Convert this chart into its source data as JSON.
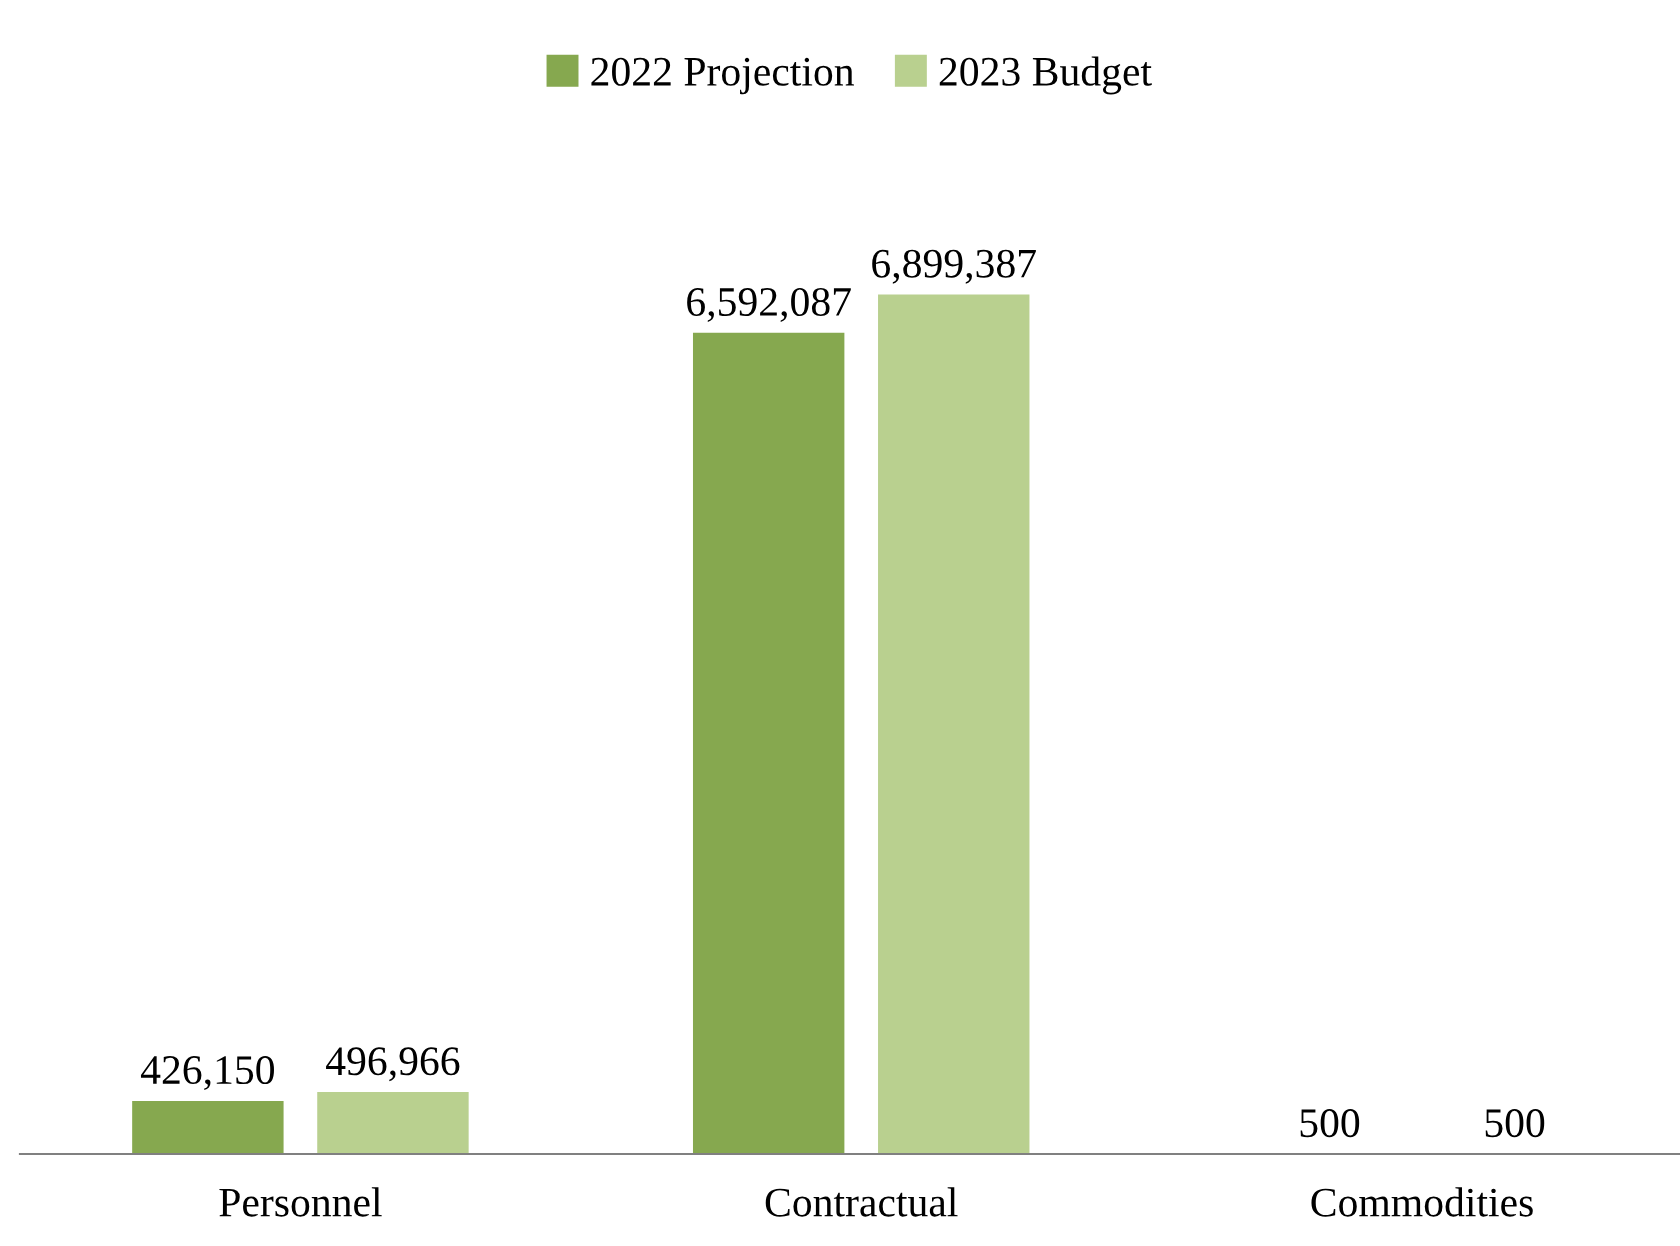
{
  "chart_data": {
    "type": "bar",
    "categories": [
      "Personnel",
      "Contractual",
      "Commodities"
    ],
    "series": [
      {
        "name": "2022 Projection",
        "color": "#86a84f",
        "values": [
          426150,
          6592087,
          500
        ],
        "value_labels": [
          "426,150",
          "6,592,087",
          "500"
        ]
      },
      {
        "name": "2023 Budget",
        "color": "#b9d08f",
        "values": [
          496966,
          6899387,
          500
        ],
        "value_labels": [
          "496,966",
          "6,899,387",
          "500"
        ]
      }
    ],
    "legend": "top",
    "grid": false
  }
}
